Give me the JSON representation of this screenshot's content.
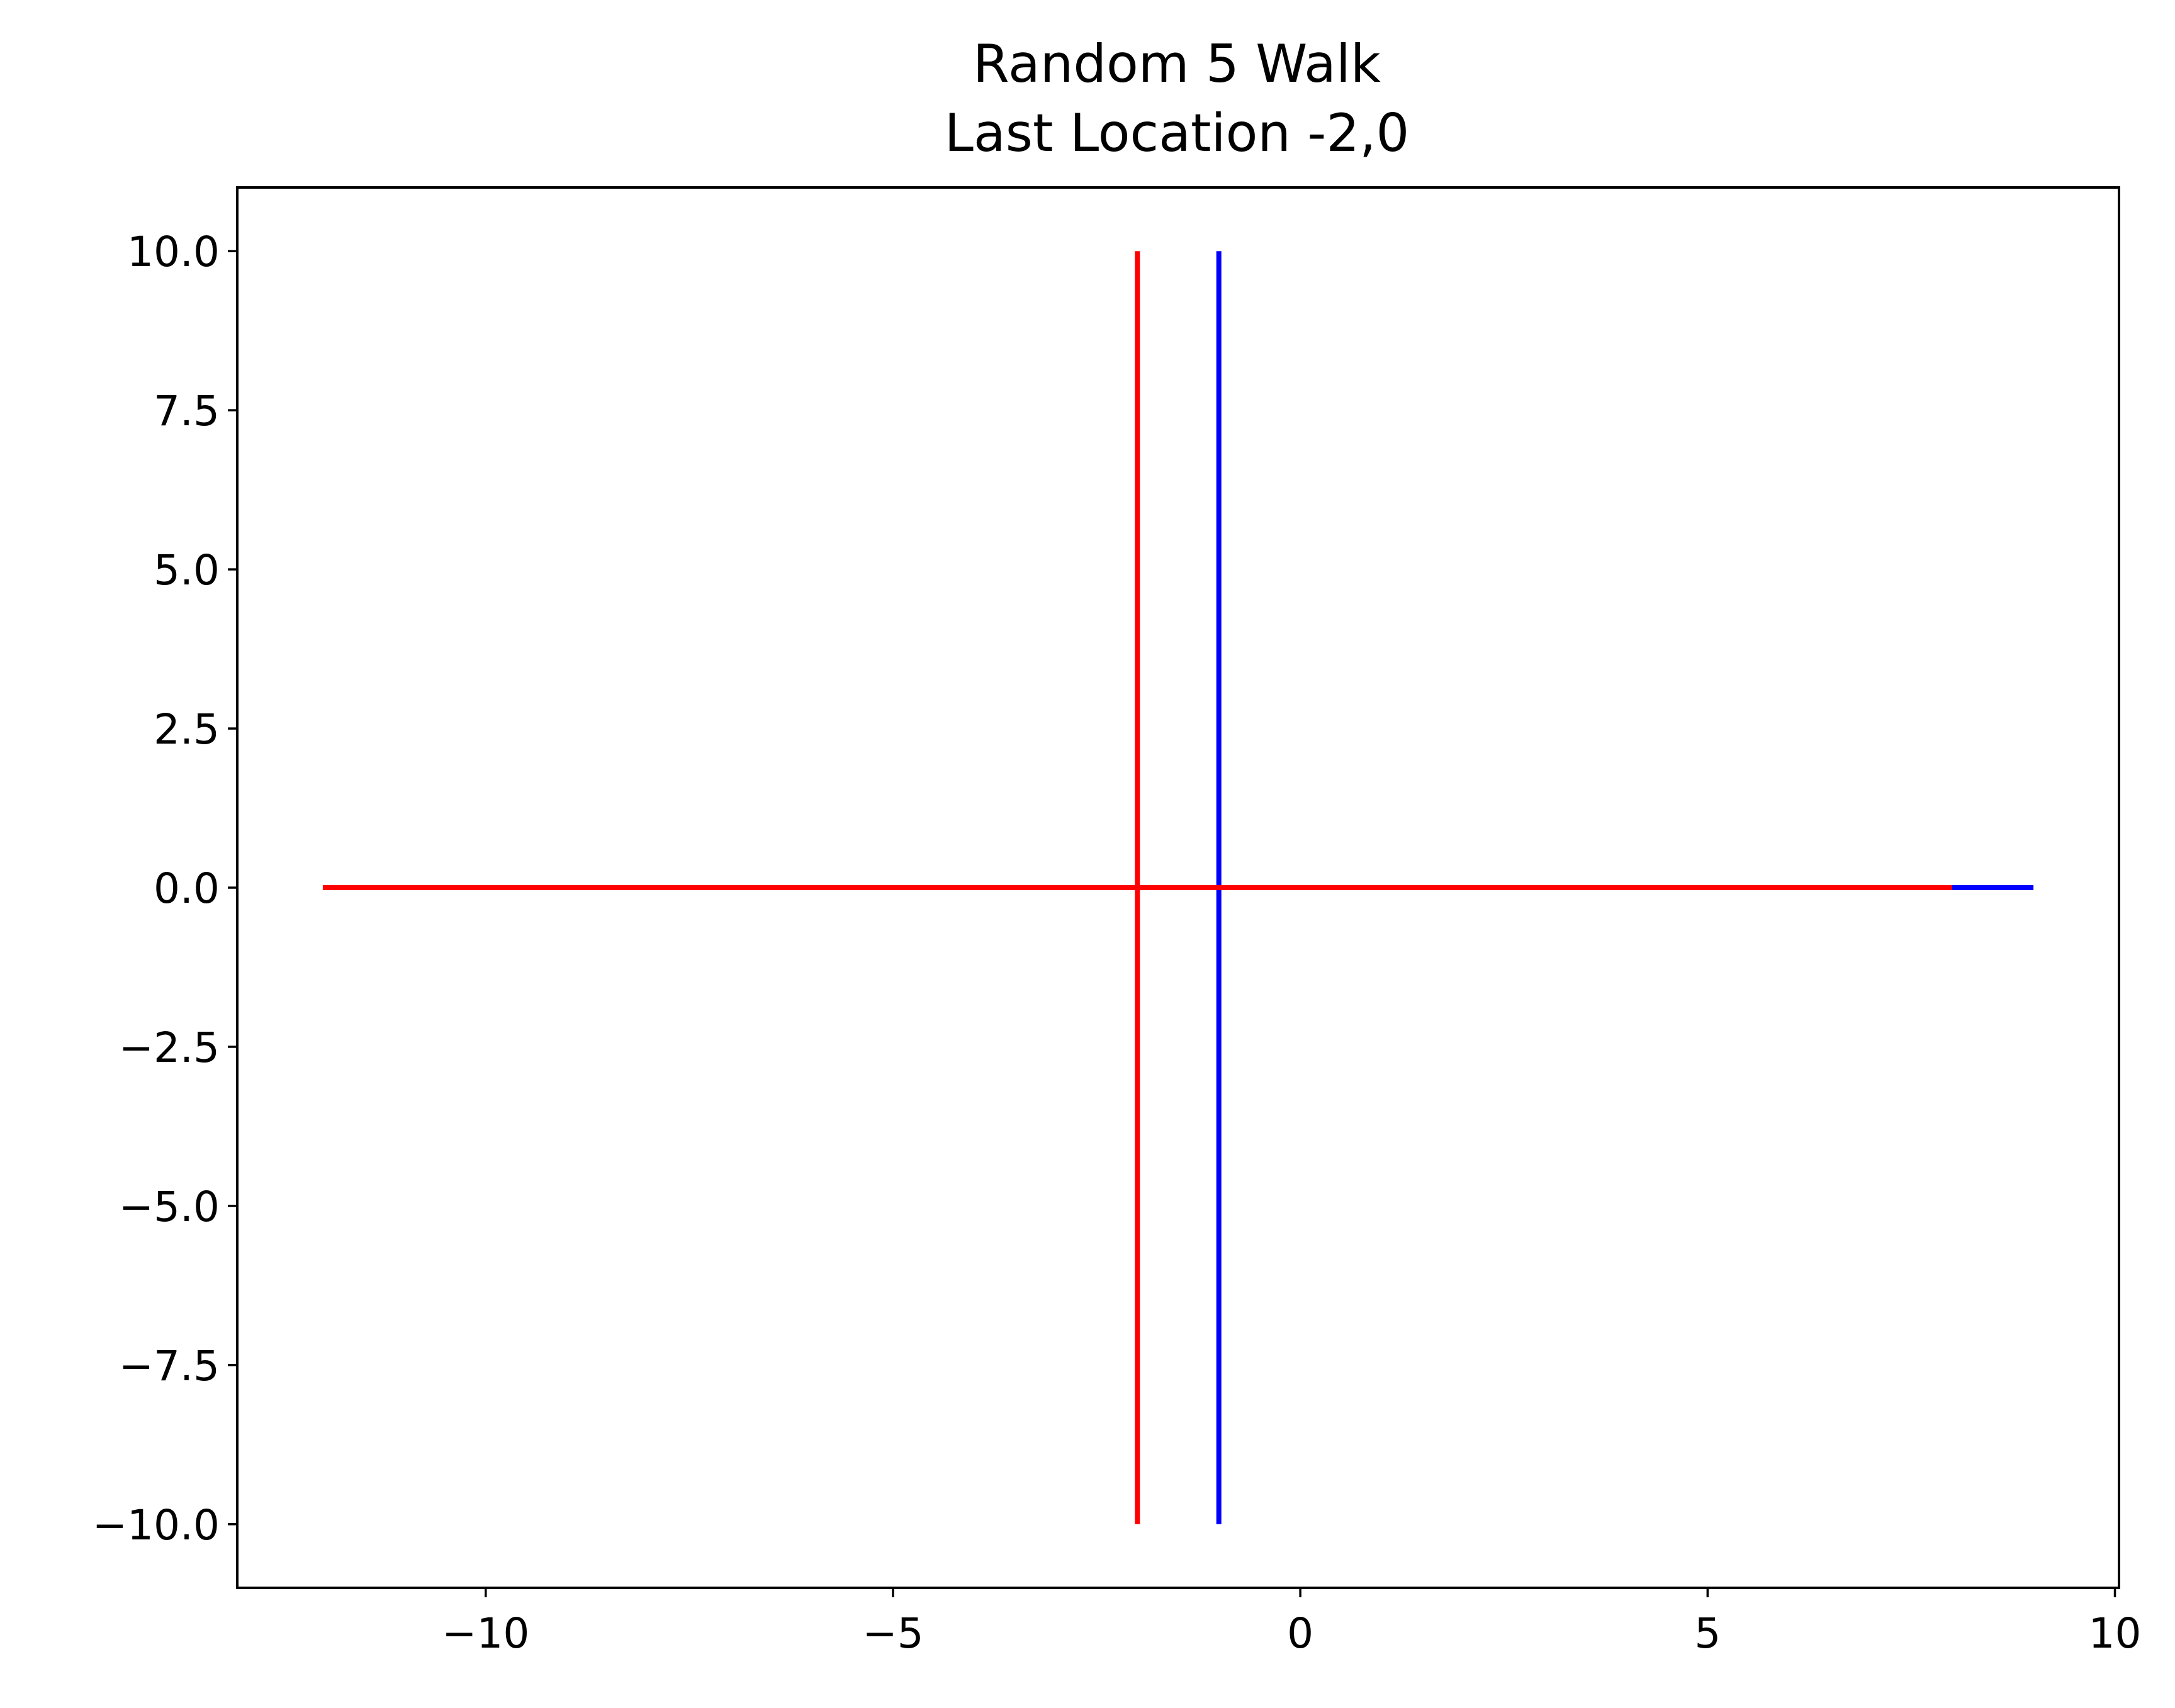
{
  "chart_data": {
    "type": "line",
    "title_lines": [
      "Random 5 Walk",
      "Last Location -2,0"
    ],
    "xlabel": "",
    "ylabel": "",
    "xlim": [
      -13.05,
      10.05
    ],
    "ylim": [
      -11,
      11
    ],
    "xticks": [
      {
        "value": -10,
        "label": "−10"
      },
      {
        "value": -5,
        "label": "−5"
      },
      {
        "value": 0,
        "label": "0"
      },
      {
        "value": 5,
        "label": "5"
      },
      {
        "value": 10,
        "label": "10"
      }
    ],
    "yticks": [
      {
        "value": 10,
        "label": "10.0"
      },
      {
        "value": 7.5,
        "label": "7.5"
      },
      {
        "value": 5,
        "label": "5.0"
      },
      {
        "value": 2.5,
        "label": "2.5"
      },
      {
        "value": 0,
        "label": "0.0"
      },
      {
        "value": -2.5,
        "label": "−2.5"
      },
      {
        "value": -5,
        "label": "−5.0"
      },
      {
        "value": -7.5,
        "label": "−7.5"
      },
      {
        "value": -10,
        "label": "−10.0"
      }
    ],
    "grid": false,
    "series": [
      {
        "color": "#0000ff",
        "segments": [
          [
            [
              -1,
              0
            ],
            [
              -1,
              10
            ]
          ],
          [
            [
              -1,
              0
            ],
            [
              -1,
              -10
            ]
          ],
          [
            [
              -1,
              0
            ],
            [
              9,
              0
            ]
          ]
        ]
      },
      {
        "color": "#ff0000",
        "segments": [
          [
            [
              -2,
              0
            ],
            [
              -2,
              10
            ]
          ],
          [
            [
              -2,
              0
            ],
            [
              -2,
              -10
            ]
          ],
          [
            [
              -12,
              0
            ],
            [
              8,
              0
            ]
          ]
        ]
      }
    ]
  }
}
